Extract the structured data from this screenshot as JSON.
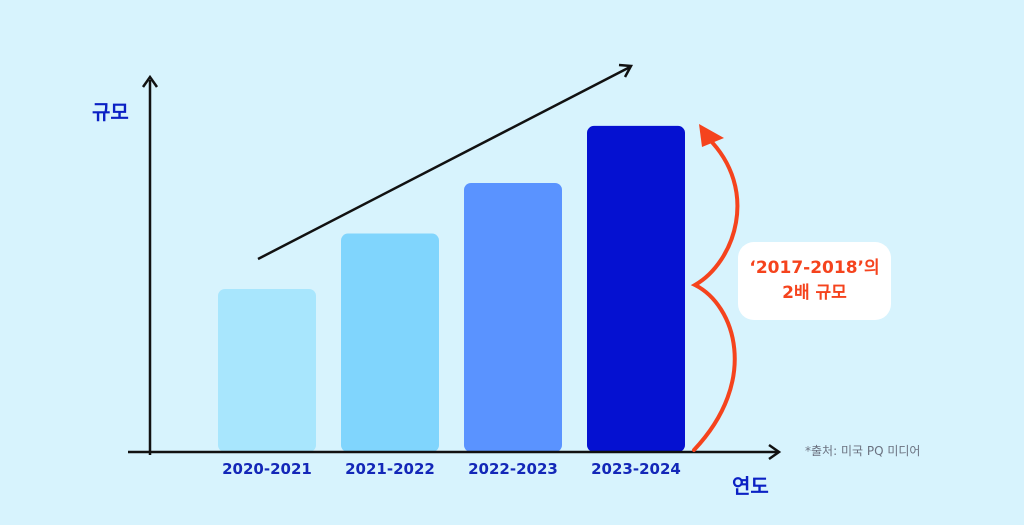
{
  "chart_data": {
    "type": "bar",
    "categories": [
      "2020-2021",
      "2021-2022",
      "2022-2023",
      "2023-2024"
    ],
    "values": [
      1.0,
      1.34,
      1.65,
      2.0
    ],
    "title": "",
    "xlabel": "연도",
    "ylabel": "규모",
    "ylim": [
      0,
      2.3
    ],
    "bar_colors": [
      "#a8e6fd",
      "#80d5fd",
      "#5a93ff",
      "#0511d1"
    ],
    "annotation": {
      "line1": "‘2017-2018’의",
      "line2": "2배 규모",
      "color": "#f5431d"
    },
    "trend_arrow": true,
    "source": "*출처: 미국 PQ 미디어"
  },
  "colors": {
    "background": "#d7f3fd",
    "axis": "#111111",
    "label": "#0b20c4",
    "accent": "#f5431d"
  }
}
